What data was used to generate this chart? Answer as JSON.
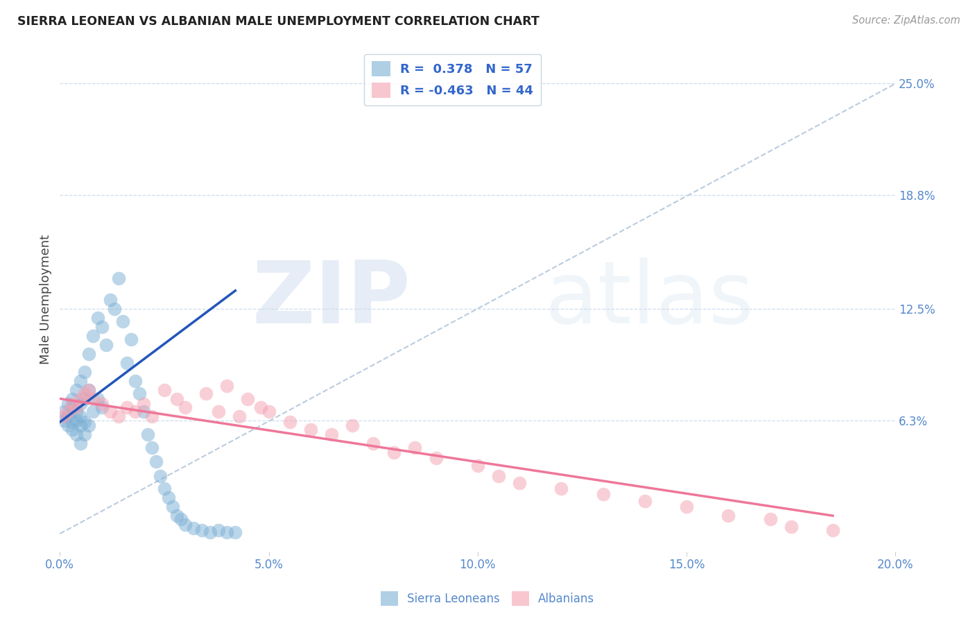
{
  "title": "SIERRA LEONEAN VS ALBANIAN MALE UNEMPLOYMENT CORRELATION CHART",
  "source": "Source: ZipAtlas.com",
  "ylabel": "Male Unemployment",
  "xlabel_ticks": [
    "0.0%",
    "5.0%",
    "10.0%",
    "15.0%",
    "20.0%"
  ],
  "xlabel_vals": [
    0.0,
    0.05,
    0.1,
    0.15,
    0.2
  ],
  "ytick_labels": [
    "6.3%",
    "12.5%",
    "18.8%",
    "25.0%"
  ],
  "ytick_vals": [
    0.063,
    0.125,
    0.188,
    0.25
  ],
  "xlim": [
    0.0,
    0.2
  ],
  "ylim": [
    -0.01,
    0.27
  ],
  "sierra_R": 0.378,
  "sierra_N": 57,
  "albanian_R": -0.463,
  "albanian_N": 44,
  "sierra_color": "#7BAFD4",
  "albanian_color": "#F4A0B0",
  "sierra_line_color": "#2255BB",
  "albanian_line_color": "#EE7799",
  "diagonal_color": "#BBCCDD",
  "background_color": "#FFFFFF",
  "watermark_zip": "ZIP",
  "watermark_atlas": "atlas",
  "sierra_x": [
    0.001,
    0.001,
    0.002,
    0.002,
    0.002,
    0.003,
    0.003,
    0.003,
    0.003,
    0.004,
    0.004,
    0.004,
    0.004,
    0.005,
    0.005,
    0.005,
    0.005,
    0.005,
    0.006,
    0.006,
    0.006,
    0.006,
    0.007,
    0.007,
    0.007,
    0.008,
    0.008,
    0.009,
    0.009,
    0.01,
    0.01,
    0.011,
    0.012,
    0.013,
    0.014,
    0.015,
    0.016,
    0.017,
    0.018,
    0.019,
    0.02,
    0.021,
    0.022,
    0.023,
    0.024,
    0.025,
    0.026,
    0.027,
    0.028,
    0.029,
    0.03,
    0.032,
    0.034,
    0.036,
    0.038,
    0.04,
    0.042
  ],
  "sierra_y": [
    0.063,
    0.068,
    0.06,
    0.065,
    0.072,
    0.058,
    0.062,
    0.07,
    0.075,
    0.055,
    0.063,
    0.068,
    0.08,
    0.05,
    0.06,
    0.065,
    0.072,
    0.085,
    0.055,
    0.062,
    0.075,
    0.09,
    0.06,
    0.08,
    0.1,
    0.068,
    0.11,
    0.075,
    0.12,
    0.07,
    0.115,
    0.105,
    0.13,
    0.125,
    0.142,
    0.118,
    0.095,
    0.108,
    0.085,
    0.078,
    0.068,
    0.055,
    0.048,
    0.04,
    0.032,
    0.025,
    0.02,
    0.015,
    0.01,
    0.008,
    0.005,
    0.003,
    0.002,
    0.001,
    0.002,
    0.001,
    0.001
  ],
  "albanian_x": [
    0.001,
    0.002,
    0.003,
    0.004,
    0.005,
    0.006,
    0.007,
    0.008,
    0.01,
    0.012,
    0.014,
    0.016,
    0.018,
    0.02,
    0.022,
    0.025,
    0.028,
    0.03,
    0.035,
    0.038,
    0.04,
    0.043,
    0.045,
    0.048,
    0.05,
    0.055,
    0.06,
    0.065,
    0.07,
    0.075,
    0.08,
    0.085,
    0.09,
    0.1,
    0.105,
    0.11,
    0.12,
    0.13,
    0.14,
    0.15,
    0.16,
    0.17,
    0.175,
    0.185
  ],
  "albanian_y": [
    0.065,
    0.068,
    0.072,
    0.07,
    0.075,
    0.078,
    0.08,
    0.075,
    0.072,
    0.068,
    0.065,
    0.07,
    0.068,
    0.072,
    0.065,
    0.08,
    0.075,
    0.07,
    0.078,
    0.068,
    0.082,
    0.065,
    0.075,
    0.07,
    0.068,
    0.062,
    0.058,
    0.055,
    0.06,
    0.05,
    0.045,
    0.048,
    0.042,
    0.038,
    0.032,
    0.028,
    0.025,
    0.022,
    0.018,
    0.015,
    0.01,
    0.008,
    0.004,
    0.002
  ],
  "sierra_trend_x": [
    0.0,
    0.042
  ],
  "sierra_trend_y_start": 0.062,
  "sierra_trend_y_end": 0.135,
  "albanian_trend_x": [
    0.0,
    0.185
  ],
  "albanian_trend_y_start": 0.075,
  "albanian_trend_y_end": 0.01
}
